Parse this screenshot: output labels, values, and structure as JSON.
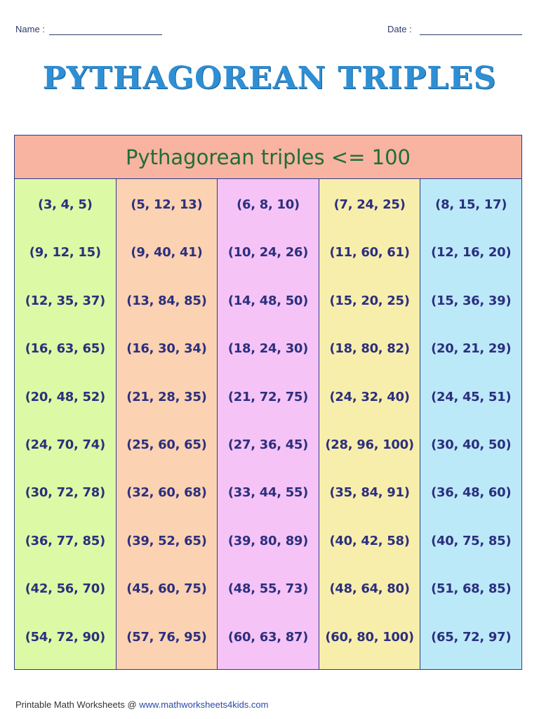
{
  "header": {
    "name_label": "Name :",
    "date_label": "Date :"
  },
  "title": "PYTHAGOREAN TRIPLES",
  "table": {
    "heading": "Pythagorean triples <= 100",
    "columns": [
      {
        "color": "#dcfaa5",
        "cells": [
          "(3, 4, 5)",
          "(9, 12, 15)",
          "(12, 35, 37)",
          "(16, 63, 65)",
          "(20, 48, 52)",
          "(24, 70, 74)",
          "(30, 72, 78)",
          "(36, 77, 85)",
          "(42, 56, 70)",
          "(54, 72, 90)"
        ]
      },
      {
        "color": "#fbd2b2",
        "cells": [
          "(5, 12, 13)",
          "(9, 40, 41)",
          "(13, 84, 85)",
          "(16, 30, 34)",
          "(21, 28, 35)",
          "(25, 60, 65)",
          "(32, 60, 68)",
          "(39, 52, 65)",
          "(45, 60, 75)",
          "(57, 76, 95)"
        ]
      },
      {
        "color": "#f5c3f6",
        "cells": [
          "(6, 8, 10)",
          "(10, 24, 26)",
          "(14, 48, 50)",
          "(18, 24, 30)",
          "(21, 72, 75)",
          "(27, 36, 45)",
          "(33, 44, 55)",
          "(39, 80, 89)",
          "(48, 55, 73)",
          "(60, 63, 87)"
        ]
      },
      {
        "color": "#f8eeac",
        "cells": [
          "(7, 24, 25)",
          "(11, 60, 61)",
          "(15, 20, 25)",
          "(18, 80, 82)",
          "(24, 32, 40)",
          "(28, 96, 100)",
          "(35, 84, 91)",
          "(40, 42, 58)",
          "(48, 64, 80)",
          "(60, 80, 100)"
        ]
      },
      {
        "color": "#bce9f8",
        "cells": [
          "(8, 15, 17)",
          "(12, 16, 20)",
          "(15, 36, 39)",
          "(20, 21, 29)",
          "(24, 45, 51)",
          "(30, 40, 50)",
          "(36, 48, 60)",
          "(40, 75, 85)",
          "(51, 68, 85)",
          "(65, 72, 97)"
        ]
      }
    ]
  },
  "footer": {
    "text": "Printable Math Worksheets @ ",
    "url": "www.mathworksheets4kids.com"
  }
}
